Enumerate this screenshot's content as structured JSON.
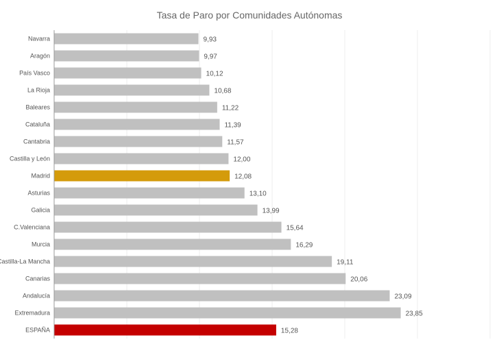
{
  "chart_data": {
    "type": "bar",
    "orientation": "horizontal",
    "title": "Tasa de Paro por Comunidades Autónomas",
    "xlabel": "",
    "ylabel": "",
    "xlim": [
      0,
      30
    ],
    "grid": true,
    "categories": [
      "Navarra",
      "Aragón",
      "País Vasco",
      "La Rioja",
      "Baleares",
      "Cataluña",
      "Cantabria",
      "Castilla y León",
      "Madrid",
      "Asturias",
      "Galicia",
      "C.Valenciana",
      "Murcia",
      "Castilla-La Mancha",
      "Canarias",
      "Andalucía",
      "Extremadura",
      "ESPAÑA"
    ],
    "values": [
      9.93,
      9.97,
      10.12,
      10.68,
      11.22,
      11.39,
      11.57,
      12.0,
      12.08,
      13.1,
      13.99,
      15.64,
      16.29,
      19.11,
      20.06,
      23.09,
      23.85,
      15.28
    ],
    "value_labels": [
      "9,93",
      "9,97",
      "10,12",
      "10,68",
      "11,22",
      "11,39",
      "11,57",
      "12,00",
      "12,08",
      "13,10",
      "13,99",
      "15,64",
      "16,29",
      "19,11",
      "20,06",
      "23,09",
      "23,85",
      "15,28"
    ],
    "colors": {
      "default": "#c0c0c0",
      "highlight_madrid": "#d49b0b",
      "highlight_espana": "#c40000"
    },
    "highlights": {
      "Madrid": "highlight_madrid",
      "ESPAÑA": "highlight_espana"
    }
  }
}
